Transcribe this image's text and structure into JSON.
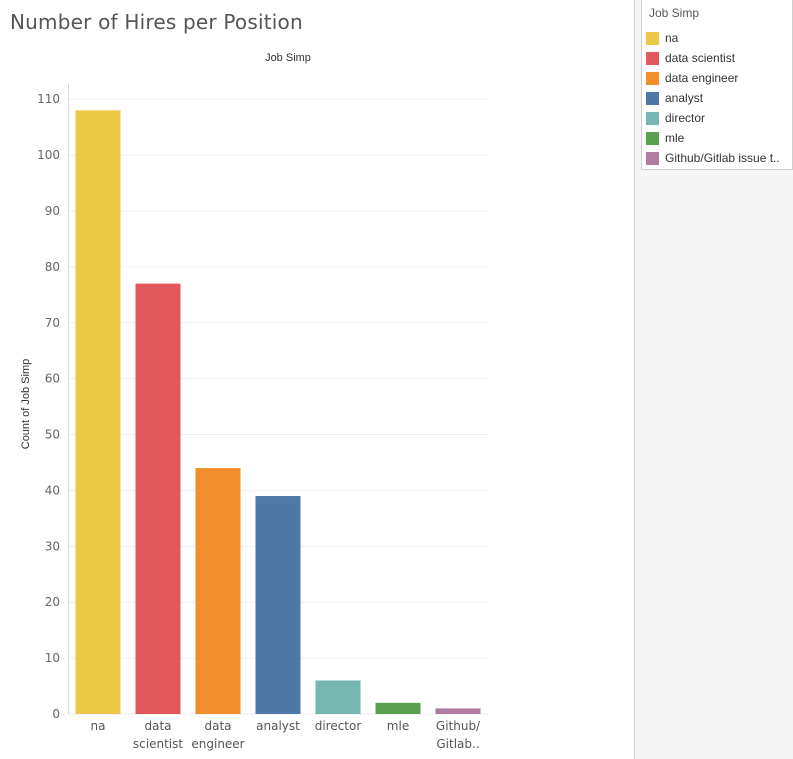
{
  "title": "Number of Hires per Position",
  "chart_data": {
    "type": "bar",
    "header": "Job Simp",
    "ylabel": "Count of Job Simp",
    "xlabel": "",
    "ylim": [
      0,
      112
    ],
    "yticks": [
      0,
      10,
      20,
      30,
      40,
      50,
      60,
      70,
      80,
      90,
      100,
      110
    ],
    "grid": true,
    "legend_position": "top-right",
    "categories": [
      "na",
      "data scientist",
      "data engineer",
      "analyst",
      "director",
      "mle",
      "Github/Gitlab issue t.."
    ],
    "tick_labels": [
      [
        "na"
      ],
      [
        "data",
        "scientist"
      ],
      [
        "data",
        "engineer"
      ],
      [
        "analyst"
      ],
      [
        "director"
      ],
      [
        "mle"
      ],
      [
        "Github/",
        "Gitlab.."
      ]
    ],
    "values": [
      108,
      77,
      44,
      39,
      6,
      2,
      1
    ],
    "colors": [
      "#ecc846",
      "#e1575a",
      "#f28e2b",
      "#4e79a7",
      "#76b7b2",
      "#59a14f",
      "#b07aa1"
    ]
  },
  "legend": {
    "title": "Job Simp",
    "items": [
      {
        "label": "na",
        "color": "#ecc846"
      },
      {
        "label": "data scientist",
        "color": "#e1575a"
      },
      {
        "label": "data engineer",
        "color": "#f28e2b"
      },
      {
        "label": "analyst",
        "color": "#4e79a7"
      },
      {
        "label": "director",
        "color": "#76b7b2"
      },
      {
        "label": "mle",
        "color": "#59a14f"
      },
      {
        "label": "Github/Gitlab issue t..",
        "color": "#b07aa1"
      }
    ]
  }
}
